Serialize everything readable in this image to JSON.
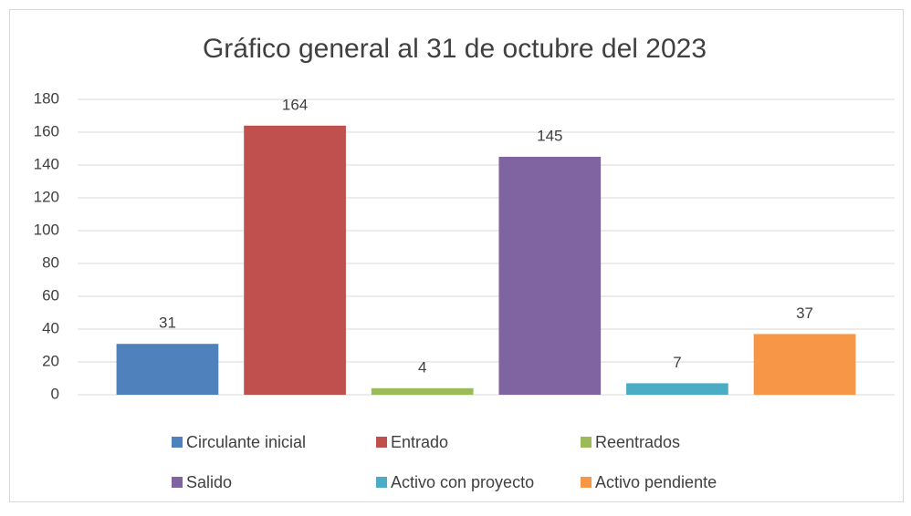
{
  "chart_data": {
    "type": "bar",
    "title": "Gráfico general al 31 de octubre del 2023",
    "categories": [
      null
    ],
    "series": [
      {
        "name": "Circulante inicial",
        "color": "#4f81bd",
        "values": [
          31
        ]
      },
      {
        "name": "Entrado",
        "color": "#c0504d",
        "values": [
          164
        ]
      },
      {
        "name": "Reentrados",
        "color": "#9bbb59",
        "values": [
          4
        ]
      },
      {
        "name": "Salido",
        "color": "#8064a2",
        "values": [
          145
        ]
      },
      {
        "name": "Activo con proyecto",
        "color": "#4bacc6",
        "values": [
          7
        ]
      },
      {
        "name": "Activo pendiente",
        "color": "#f79646",
        "values": [
          37
        ]
      }
    ],
    "ylim": [
      0,
      180
    ],
    "yticks": [
      0,
      20,
      40,
      60,
      80,
      100,
      120,
      140,
      160,
      180
    ],
    "grid": true,
    "legend": "bottom"
  }
}
